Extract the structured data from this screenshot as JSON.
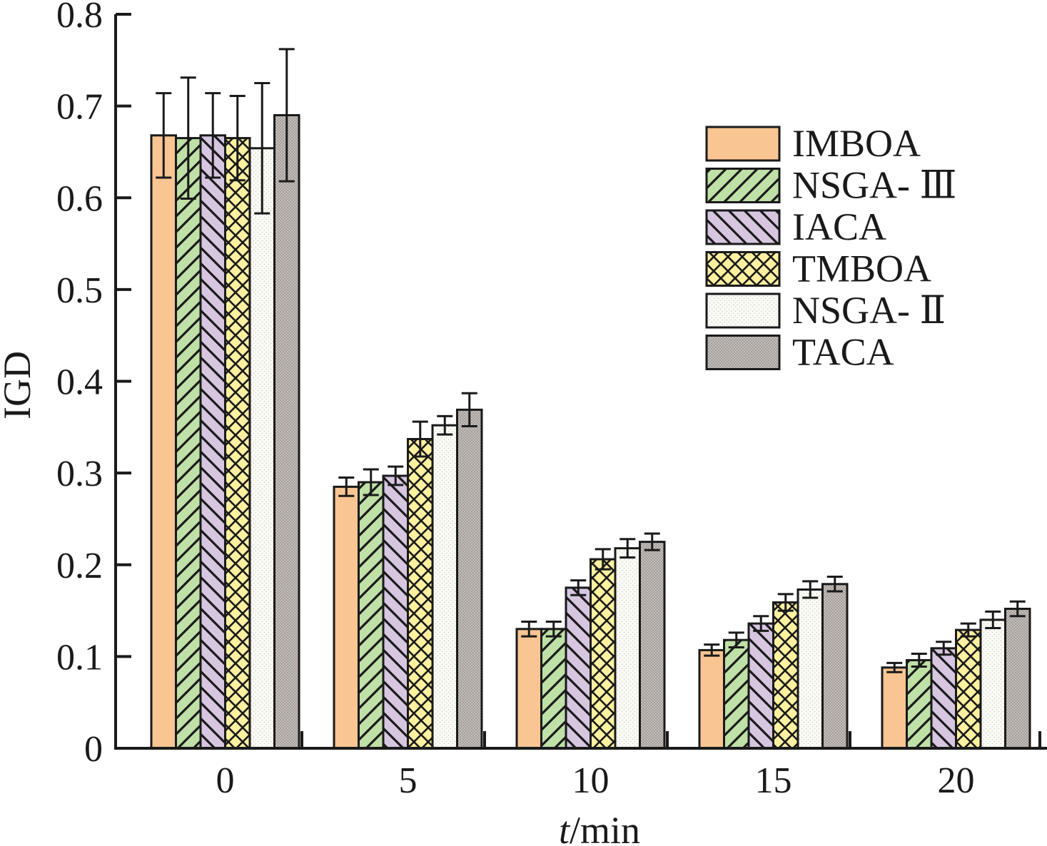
{
  "chart_data": {
    "type": "bar",
    "categories": [
      "0",
      "5",
      "10",
      "15",
      "20"
    ],
    "xlabel_italic": "t",
    "xlabel_rest": "/min",
    "ylabel": "IGD",
    "ylim": [
      0,
      0.8
    ],
    "yticks": [
      "0",
      "0.1",
      "0.2",
      "0.3",
      "0.4",
      "0.5",
      "0.6",
      "0.7",
      "0.8"
    ],
    "grid": false,
    "legend_position": "top-right",
    "series": [
      {
        "name": "IMBOA",
        "color": "#f9c592",
        "pattern": "solid",
        "values": [
          0.668,
          0.285,
          0.13,
          0.107,
          0.088
        ],
        "errors": [
          0.046,
          0.01,
          0.008,
          0.006,
          0.005
        ]
      },
      {
        "name": "NSGA- Ⅲ",
        "color": "#bfe0a6",
        "pattern": "forward-hatch",
        "values": [
          0.665,
          0.29,
          0.13,
          0.118,
          0.096
        ],
        "errors": [
          0.066,
          0.014,
          0.008,
          0.008,
          0.007
        ]
      },
      {
        "name": "IACA",
        "color": "#d6c6e0",
        "pattern": "back-hatch",
        "values": [
          0.668,
          0.297,
          0.175,
          0.136,
          0.109
        ],
        "errors": [
          0.046,
          0.01,
          0.008,
          0.008,
          0.007
        ]
      },
      {
        "name": "TMBOA",
        "color": "#fdf1a0",
        "pattern": "cross-hatch",
        "values": [
          0.665,
          0.337,
          0.206,
          0.159,
          0.129
        ],
        "errors": [
          0.046,
          0.019,
          0.011,
          0.009,
          0.007
        ]
      },
      {
        "name": "NSGA- Ⅱ",
        "color": "#fbfbf6",
        "pattern": "dots",
        "values": [
          0.654,
          0.352,
          0.218,
          0.173,
          0.14
        ],
        "errors": [
          0.071,
          0.01,
          0.01,
          0.009,
          0.009
        ]
      },
      {
        "name": "TACA",
        "color": "#b7b1ad",
        "pattern": "dense-dots",
        "values": [
          0.69,
          0.369,
          0.225,
          0.179,
          0.152
        ],
        "errors": [
          0.072,
          0.018,
          0.009,
          0.008,
          0.008
        ]
      }
    ]
  }
}
